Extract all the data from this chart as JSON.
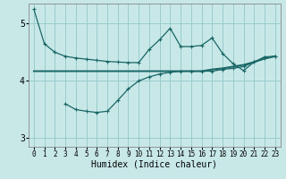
{
  "xlabel": "Humidex (Indice chaleur)",
  "xlim": [
    -0.5,
    23.5
  ],
  "ylim": [
    2.85,
    5.35
  ],
  "yticks": [
    3,
    4,
    5
  ],
  "xticks": [
    0,
    1,
    2,
    3,
    4,
    5,
    6,
    7,
    8,
    9,
    10,
    11,
    12,
    13,
    14,
    15,
    16,
    17,
    18,
    19,
    20,
    21,
    22,
    23
  ],
  "bg_color": "#c8e8e8",
  "grid_color": "#99cccc",
  "line_color": "#1a6666",
  "line1_x": [
    0,
    1,
    2,
    3,
    4,
    5,
    6,
    7,
    8,
    9,
    10,
    11,
    12,
    13,
    14,
    15,
    16,
    17,
    18,
    19,
    20,
    21,
    22,
    23
  ],
  "line1_y": [
    5.25,
    4.65,
    4.5,
    4.43,
    4.4,
    4.38,
    4.36,
    4.34,
    4.33,
    4.32,
    4.32,
    4.55,
    4.72,
    4.92,
    4.6,
    4.6,
    4.62,
    4.75,
    4.48,
    4.3,
    4.18,
    4.33,
    4.42,
    4.43
  ],
  "line2_x": [
    0,
    1,
    2,
    3,
    4,
    5,
    6,
    7,
    8,
    9,
    10,
    11,
    12,
    13,
    14,
    15,
    16,
    17,
    18,
    19,
    20,
    21,
    22,
    23
  ],
  "line2_y": [
    4.17,
    4.17,
    4.17,
    4.17,
    4.17,
    4.17,
    4.17,
    4.17,
    4.17,
    4.17,
    4.17,
    4.17,
    4.17,
    4.17,
    4.17,
    4.17,
    4.17,
    4.2,
    4.22,
    4.25,
    4.28,
    4.33,
    4.39,
    4.43
  ],
  "line3_x": [
    3,
    4,
    5,
    6,
    7,
    8,
    9,
    10,
    11,
    12,
    13,
    14,
    15,
    16,
    17,
    18,
    19,
    20,
    21,
    22,
    23
  ],
  "line3_y": [
    3.6,
    3.5,
    3.47,
    3.45,
    3.47,
    3.66,
    3.86,
    4.0,
    4.07,
    4.12,
    4.15,
    4.17,
    4.17,
    4.17,
    4.17,
    4.2,
    4.22,
    4.25,
    4.33,
    4.39,
    4.43
  ]
}
